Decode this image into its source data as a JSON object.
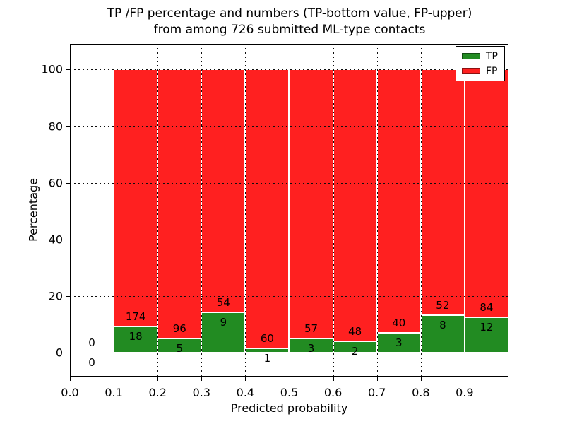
{
  "title": {
    "line1": "TP /FP percentage and numbers (TP-bottom value, FP-upper)",
    "line2": "from among 726 submitted ML-type contacts"
  },
  "axes": {
    "ylabel": "Percentage",
    "xlabel": "Predicted probability"
  },
  "legend": {
    "items": [
      {
        "label": "TP",
        "color": "#228b22"
      },
      {
        "label": "FP",
        "color": "#ff2020"
      }
    ]
  },
  "chart_data": {
    "type": "bar",
    "stacked": true,
    "normalized_to_percent": true,
    "title": "TP /FP percentage and numbers (TP-bottom value, FP-upper) from among 726 submitted ML-type contacts",
    "xlabel": "Predicted probability",
    "ylabel": "Percentage",
    "total_contacts": 726,
    "bin_width": 0.1,
    "bin_starts": [
      0.0,
      0.1,
      0.2,
      0.3,
      0.4,
      0.5,
      0.6,
      0.7,
      0.8,
      0.9
    ],
    "series": [
      {
        "name": "TP",
        "color": "#228b22",
        "counts": [
          0,
          18,
          5,
          9,
          1,
          3,
          2,
          3,
          8,
          12
        ]
      },
      {
        "name": "FP",
        "color": "#ff2020",
        "counts": [
          0,
          174,
          96,
          54,
          60,
          57,
          48,
          40,
          52,
          84
        ]
      }
    ],
    "xtick_labels": [
      "0.0",
      "0.1",
      "0.2",
      "0.3",
      "0.4",
      "0.5",
      "0.6",
      "0.7",
      "0.8",
      "0.9"
    ],
    "ytick_values": [
      0,
      20,
      40,
      60,
      80,
      100
    ],
    "xlim": [
      0.0,
      1.0
    ],
    "ylim": [
      -8.5,
      109.5
    ],
    "grid": "dotted, drawn above bars",
    "legend_position": "upper right"
  }
}
